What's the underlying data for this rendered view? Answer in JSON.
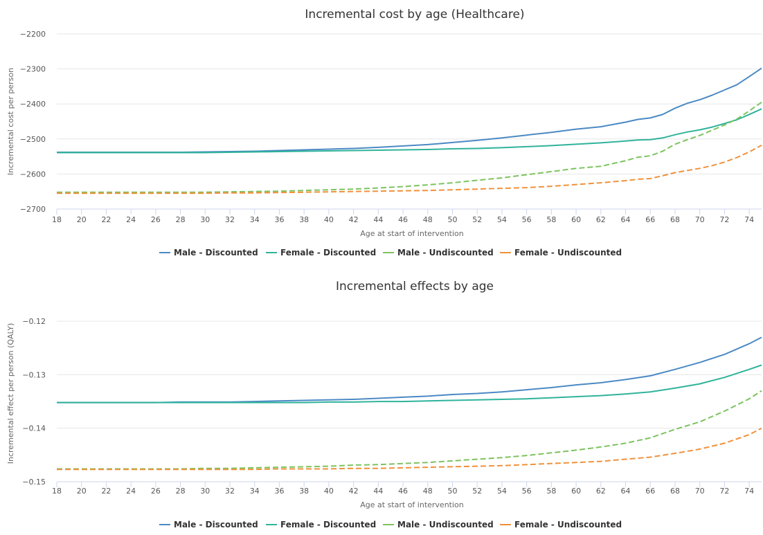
{
  "chart_data": [
    {
      "type": "line",
      "title": "Incremental cost by age (Healthcare)",
      "xlabel": "Age at start of intervention",
      "ylabel": "Incremental cost per person",
      "xlim": [
        18,
        75
      ],
      "ylim": [
        -2700,
        -2200
      ],
      "x_ticks": [
        18,
        20,
        22,
        24,
        26,
        28,
        30,
        32,
        34,
        36,
        38,
        40,
        42,
        44,
        46,
        48,
        50,
        52,
        54,
        56,
        58,
        60,
        62,
        64,
        66,
        68,
        70,
        72,
        74
      ],
      "y_ticks": [
        -2200,
        -2300,
        -2400,
        -2500,
        -2600,
        -2700
      ],
      "legend_position": "bottom",
      "x": [
        18,
        20,
        22,
        24,
        26,
        28,
        30,
        32,
        34,
        36,
        38,
        40,
        42,
        44,
        46,
        48,
        50,
        52,
        54,
        56,
        58,
        60,
        62,
        64,
        65,
        66,
        67,
        68,
        69,
        70,
        71,
        72,
        73,
        74,
        75
      ],
      "series": [
        {
          "name": "Male - Discounted",
          "color": "#4a89c4",
          "dash": "solid",
          "values": [
            -2538,
            -2538,
            -2538,
            -2538,
            -2538,
            -2538,
            -2537,
            -2536,
            -2535,
            -2533,
            -2531,
            -2529,
            -2527,
            -2524,
            -2520,
            -2516,
            -2510,
            -2504,
            -2497,
            -2489,
            -2481,
            -2472,
            -2465,
            -2452,
            -2444,
            -2440,
            -2430,
            -2412,
            -2398,
            -2388,
            -2375,
            -2360,
            -2345,
            -2322,
            -2298
          ]
        },
        {
          "name": "Female - Discounted",
          "color": "#2fb39a",
          "dash": "solid",
          "values": [
            -2539,
            -2539,
            -2539,
            -2539,
            -2539,
            -2539,
            -2539,
            -2538,
            -2537,
            -2536,
            -2535,
            -2534,
            -2533,
            -2532,
            -2531,
            -2530,
            -2528,
            -2527,
            -2525,
            -2522,
            -2519,
            -2515,
            -2511,
            -2506,
            -2503,
            -2502,
            -2497,
            -2488,
            -2480,
            -2474,
            -2466,
            -2456,
            -2445,
            -2430,
            -2414
          ]
        },
        {
          "name": "Male - Undiscounted",
          "color": "#7cc35e",
          "dash": "dashed",
          "values": [
            -2652,
            -2652,
            -2652,
            -2652,
            -2652,
            -2652,
            -2652,
            -2651,
            -2650,
            -2649,
            -2647,
            -2645,
            -2643,
            -2640,
            -2636,
            -2631,
            -2625,
            -2618,
            -2611,
            -2602,
            -2593,
            -2584,
            -2578,
            -2562,
            -2552,
            -2548,
            -2535,
            -2515,
            -2502,
            -2490,
            -2475,
            -2460,
            -2443,
            -2420,
            -2395
          ]
        },
        {
          "name": "Female - Undiscounted",
          "color": "#f0913b",
          "dash": "dashed",
          "values": [
            -2655,
            -2655,
            -2655,
            -2655,
            -2655,
            -2655,
            -2655,
            -2654,
            -2654,
            -2653,
            -2652,
            -2651,
            -2650,
            -2649,
            -2648,
            -2647,
            -2645,
            -2643,
            -2641,
            -2639,
            -2635,
            -2630,
            -2625,
            -2619,
            -2615,
            -2613,
            -2605,
            -2596,
            -2590,
            -2584,
            -2576,
            -2566,
            -2553,
            -2537,
            -2518
          ]
        }
      ]
    },
    {
      "type": "line",
      "title": "Incremental effects by age",
      "xlabel": "Age at start of intervention",
      "ylabel": "Incremental effect per person (QALY)",
      "xlim": [
        18,
        75
      ],
      "ylim": [
        -0.15,
        -0.117
      ],
      "x_ticks": [
        18,
        20,
        22,
        24,
        26,
        28,
        30,
        32,
        34,
        36,
        38,
        40,
        42,
        44,
        46,
        48,
        50,
        52,
        54,
        56,
        58,
        60,
        62,
        64,
        66,
        68,
        70,
        72,
        74
      ],
      "y_ticks": [
        -0.12,
        -0.13,
        -0.14,
        -0.15
      ],
      "y_tick_labels": [
        "−0.12",
        "−0.13",
        "−0.14",
        "−0.15"
      ],
      "legend_position": "bottom",
      "x": [
        18,
        20,
        22,
        24,
        26,
        28,
        30,
        32,
        34,
        36,
        38,
        40,
        42,
        44,
        46,
        48,
        50,
        52,
        54,
        56,
        58,
        60,
        62,
        64,
        66,
        68,
        70,
        72,
        74,
        75
      ],
      "series": [
        {
          "name": "Male - Discounted",
          "color": "#4a89c4",
          "dash": "solid",
          "values": [
            -0.1352,
            -0.1352,
            -0.1352,
            -0.1352,
            -0.1352,
            -0.1351,
            -0.1351,
            -0.1351,
            -0.135,
            -0.1349,
            -0.1348,
            -0.1347,
            -0.1346,
            -0.1344,
            -0.1342,
            -0.134,
            -0.1337,
            -0.1335,
            -0.1332,
            -0.1328,
            -0.1324,
            -0.1319,
            -0.1315,
            -0.1309,
            -0.1302,
            -0.129,
            -0.1277,
            -0.1262,
            -0.1242,
            -0.123
          ]
        },
        {
          "name": "Female - Discounted",
          "color": "#2fb39a",
          "dash": "solid",
          "values": [
            -0.1352,
            -0.1352,
            -0.1352,
            -0.1352,
            -0.1352,
            -0.1352,
            -0.1352,
            -0.1352,
            -0.1352,
            -0.1352,
            -0.1352,
            -0.1351,
            -0.1351,
            -0.135,
            -0.135,
            -0.1349,
            -0.1348,
            -0.1347,
            -0.1346,
            -0.1345,
            -0.1343,
            -0.1341,
            -0.1339,
            -0.1336,
            -0.1332,
            -0.1325,
            -0.1317,
            -0.1305,
            -0.129,
            -0.1282
          ]
        },
        {
          "name": "Male - Undiscounted",
          "color": "#7cc35e",
          "dash": "dashed",
          "values": [
            -0.1476,
            -0.1476,
            -0.1476,
            -0.1476,
            -0.1476,
            -0.1476,
            -0.1475,
            -0.1475,
            -0.1474,
            -0.1473,
            -0.1472,
            -0.1471,
            -0.1469,
            -0.1468,
            -0.1466,
            -0.1464,
            -0.1461,
            -0.1458,
            -0.1455,
            -0.1451,
            -0.1446,
            -0.1441,
            -0.1435,
            -0.1428,
            -0.1418,
            -0.1402,
            -0.1388,
            -0.1368,
            -0.1345,
            -0.133
          ]
        },
        {
          "name": "Female - Undiscounted",
          "color": "#f0913b",
          "dash": "dashed",
          "values": [
            -0.1477,
            -0.1477,
            -0.1477,
            -0.1477,
            -0.1477,
            -0.1477,
            -0.1477,
            -0.1477,
            -0.1477,
            -0.1476,
            -0.1476,
            -0.1476,
            -0.1475,
            -0.1475,
            -0.1474,
            -0.1473,
            -0.1472,
            -0.1471,
            -0.147,
            -0.1468,
            -0.1466,
            -0.1464,
            -0.1462,
            -0.1458,
            -0.1454,
            -0.1447,
            -0.1439,
            -0.1428,
            -0.1412,
            -0.14
          ]
        }
      ]
    }
  ]
}
